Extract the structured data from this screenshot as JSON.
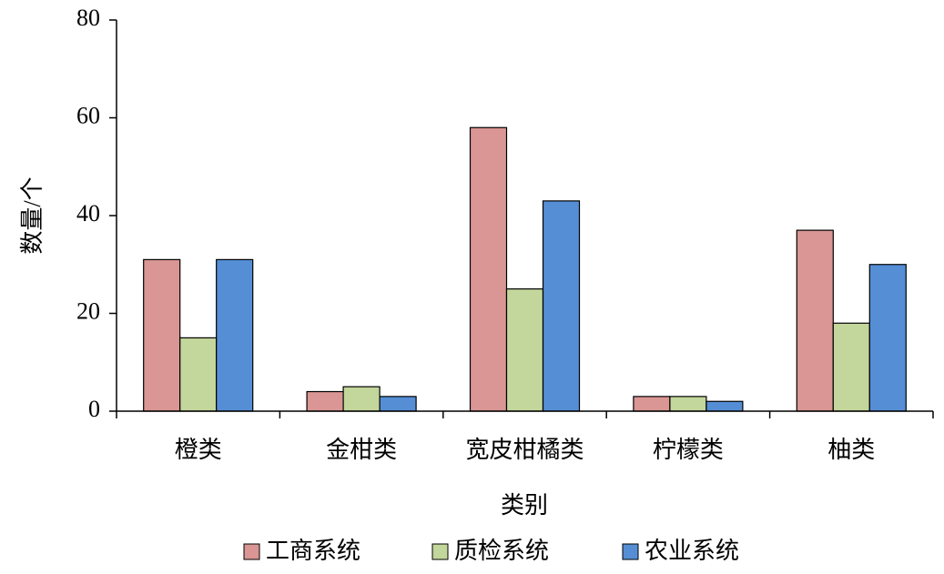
{
  "chart_data": {
    "type": "bar",
    "y_label": "数量/个",
    "x_label": "类别",
    "categories": [
      "橙类",
      "金柑类",
      "宽皮柑橘类",
      "柠檬类",
      "柚类"
    ],
    "series": [
      {
        "name": "工商系统",
        "color": "#d99694",
        "values": [
          31,
          4,
          58,
          3,
          37
        ]
      },
      {
        "name": "质检系统",
        "color": "#c3d69b",
        "values": [
          15,
          5,
          25,
          3,
          18
        ]
      },
      {
        "name": "农业系统",
        "color": "#558ed5",
        "values": [
          31,
          3,
          43,
          2,
          30
        ]
      }
    ],
    "ylim": [
      0,
      80
    ],
    "yticks": [
      0,
      20,
      40,
      60,
      80
    ],
    "legend": "bottom"
  }
}
